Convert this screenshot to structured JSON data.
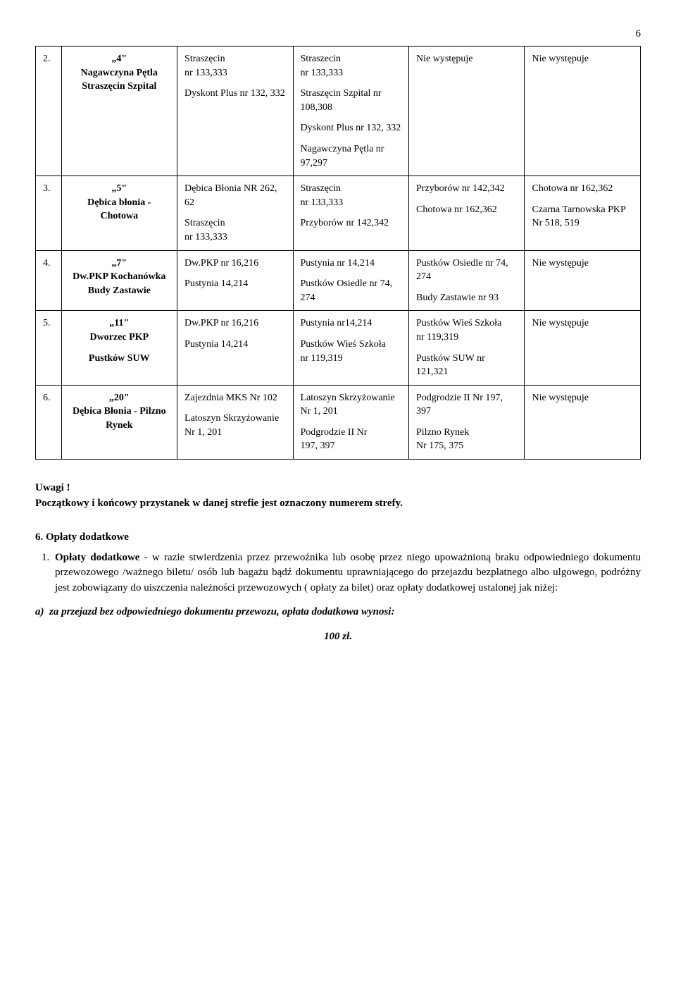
{
  "page_number": "6",
  "table": {
    "rows": [
      {
        "num": "2.",
        "route_q": "„4\"",
        "route_name": "Nagawczyna Pętla Straszęcin Szpital",
        "col2": [
          "Straszęcin\nnr 133,333",
          "Dyskont Plus nr 132, 332"
        ],
        "col3": [
          "Straszecin\n nr 133,333",
          "Straszęcin Szpital nr 108,308",
          "Dyskont Plus nr 132, 332",
          "Nagawczyna Pętla nr 97,297"
        ],
        "col4": [
          "Nie występuje"
        ],
        "col5": [
          "Nie występuje"
        ]
      },
      {
        "num": "3.",
        "route_q": "„5\"",
        "route_name": "Dębica błonia - Chotowa",
        "col2": [
          "Dębica Błonia NR 262, 62",
          "Straszęcin\nnr 133,333"
        ],
        "col3": [
          "Straszęcin\nnr 133,333",
          "Przyborów nr 142,342"
        ],
        "col4": [
          "Przyborów nr 142,342",
          "Chotowa nr 162,362"
        ],
        "col5": [
          "Chotowa nr 162,362",
          "Czarna Tarnowska PKP Nr  518, 519"
        ]
      },
      {
        "num": "4.",
        "route_q": "„7\"",
        "route_name": "Dw.PKP Kochanówka Budy Zastawie",
        "col2": [
          "Dw.PKP nr 16,216",
          "Pustynia 14,214"
        ],
        "col3": [
          "Pustynia nr 14,214",
          "Pustków Osiedle nr 74, 274"
        ],
        "col4": [
          "Pustków Osiedle nr 74, 274",
          "Budy Zastawie nr 93"
        ],
        "col5": [
          "Nie występuje"
        ]
      },
      {
        "num": "5.",
        "route_q": "„11\"",
        "route_name": "Dworzec PKP",
        "route_name2": "Pustków SUW",
        "col2": [
          "Dw.PKP nr 16,216",
          "Pustynia 14,214"
        ],
        "col3": [
          "Pustynia nr14,214",
          "Pustków Wieś Szkoła\n nr 119,319"
        ],
        "col4": [
          "Pustków Wieś Szkoła\n nr 119,319",
          "Pustków SUW nr 121,321"
        ],
        "col5": [
          "Nie występuje"
        ]
      },
      {
        "num": "6.",
        "route_q": "„20\"",
        "route_name": "Dębica Błonia - Pilzno Rynek",
        "col2": [
          "Zajezdnia MKS Nr  102",
          "Latoszyn Skrzyżowanie\nNr 1, 201"
        ],
        "col3": [
          "Latoszyn Skrzyżowanie Nr 1, 201",
          "Podgrodzie II Nr\n197, 397"
        ],
        "col4": [
          "Podgrodzie II Nr 197, 397",
          "Pilzno Rynek\nNr 175, 375"
        ],
        "col5": [
          "Nie występuje"
        ]
      }
    ]
  },
  "uwagi_label": "Uwagi !",
  "uwagi_text": "Początkowy i końcowy przystanek w danej strefie jest oznaczony numerem strefy.",
  "section6_title": "6. Opłaty dodatkowe",
  "item1_label": "Opłaty dodatkowe",
  "item1_text": " - w razie stwierdzenia przez przewoźnika lub osobę przez niego upoważnioną braku odpowiedniego dokumentu przewozowego /ważnego biletu/ osób lub bagażu bądź dokumentu uprawniającego do przejazdu bezpłatnego albo ulgowego, podróżny jest zobowiązany do uiszczenia należności przewozowych ( opłaty za bilet) oraz opłaty dodatkowej ustalonej jak niżej:",
  "sub_a_label": "a)",
  "sub_a_text": "za przejazd bez odpowiedniego dokumentu przewozu, opłata dodatkowa wynosi:",
  "amount": "100 zł."
}
